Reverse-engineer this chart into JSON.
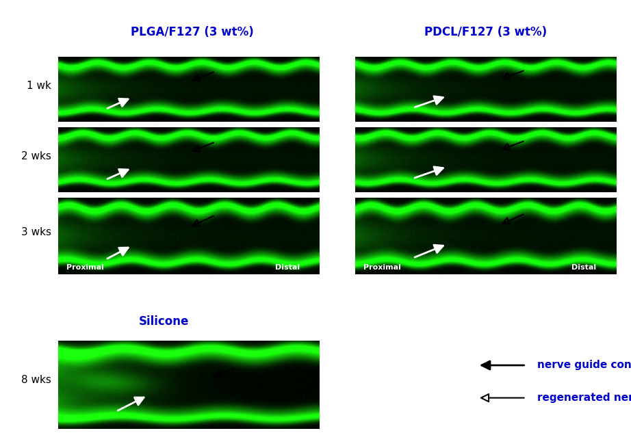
{
  "title_left": "PLGA/F127 (3 wt%)",
  "title_right": "PDCL/F127 (3 wt%)",
  "title_bottom": "Silicone",
  "title_color": "#0000cc",
  "title_fontsize": 12,
  "row_labels": [
    "1 wk",
    "2 wks",
    "3 wks"
  ],
  "row_label_bottom": "8 wks",
  "row_label_fontsize": 11,
  "row_label_color": "#000000",
  "legend_text_color": "#0000cc",
  "legend_fontsize": 11,
  "bg_color": "#ffffff",
  "proximal_label": "Proximal",
  "distal_label": "Distal",
  "img_label_color": "#ffffff",
  "img_label_fontsize": 8,
  "nerve_guide_conduit": "nerve guide conduit",
  "regenerated_nerve": "regenerated nerve"
}
